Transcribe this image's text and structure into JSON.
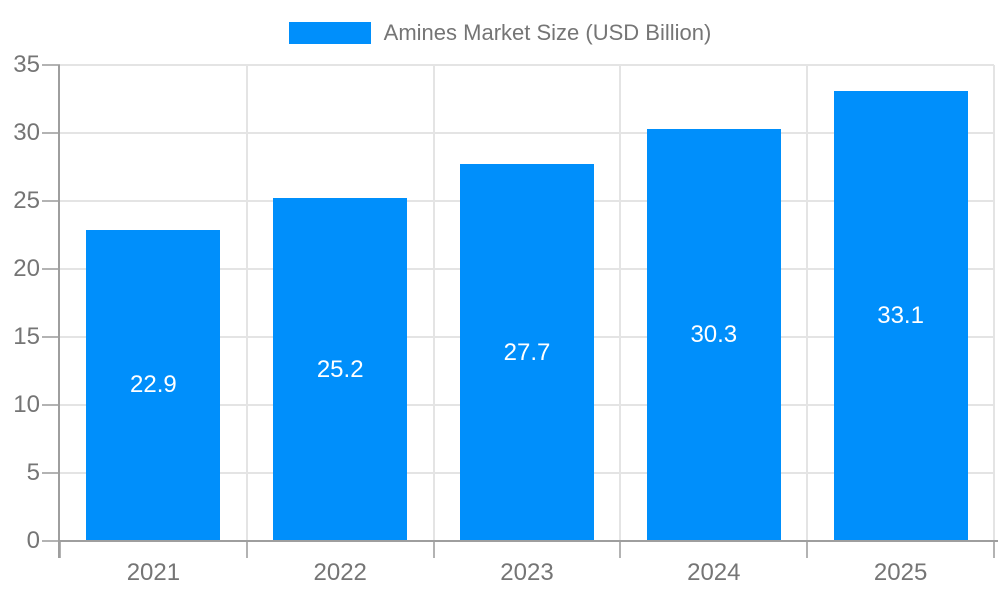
{
  "chart_data": {
    "type": "bar",
    "title": "Amines Market Size (USD Billion)",
    "categories": [
      "2021",
      "2022",
      "2023",
      "2024",
      "2025"
    ],
    "values": [
      22.9,
      25.2,
      27.7,
      30.3,
      33.1
    ],
    "series": [
      {
        "name": "Amines Market Size (USD Billion)",
        "values": [
          22.9,
          25.2,
          27.7,
          30.3,
          33.1
        ]
      }
    ],
    "xlabel": "",
    "ylabel": "",
    "ylim": [
      0,
      35
    ],
    "y_ticks": [
      0,
      5,
      10,
      15,
      20,
      25,
      30,
      35
    ],
    "grid": "on",
    "legend_position": "top-center",
    "colors": {
      "bar": "#008FFB",
      "bar_label": "#ffffff",
      "axis_line": "#9e9e9e",
      "tick_line": "#b3b3b3",
      "gridline": "#e4e4e4",
      "text": "#757575",
      "background": "#ffffff"
    }
  }
}
